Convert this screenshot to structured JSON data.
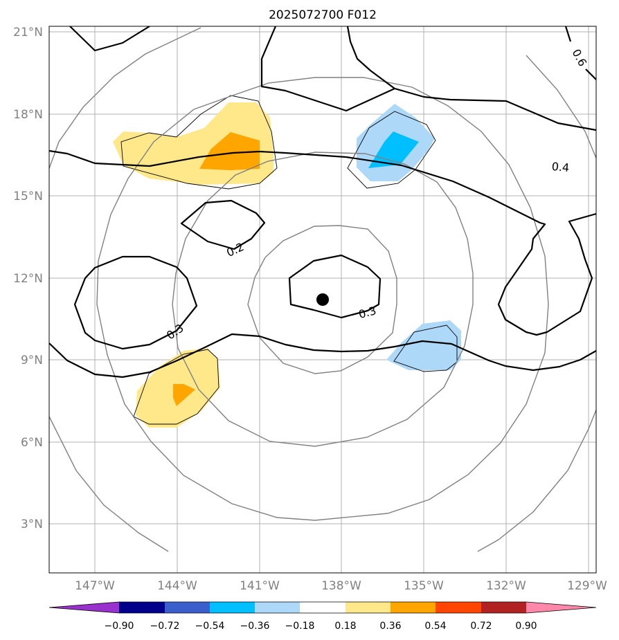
{
  "title": "2025072700 F012",
  "map": {
    "lon_labels": [
      "147°W",
      "144°W",
      "141°W",
      "138°W",
      "135°W",
      "132°W",
      "129°W"
    ],
    "lat_labels": [
      "21°N",
      "18°N",
      "15°N",
      "12°N",
      "9°N",
      "6°N",
      "3°N"
    ],
    "lon_ticks": [
      -147,
      -144,
      -141,
      -138,
      -135,
      -132,
      -129
    ],
    "lat_ticks": [
      21,
      18,
      15,
      12,
      9,
      6,
      3
    ],
    "extent": {
      "lon_min": -148.65,
      "lon_max": -128.7,
      "lat_min": 1.2,
      "lat_max": 21.15
    },
    "center_marker": {
      "lon": -138.7,
      "lat": 11.2
    },
    "contour_labels": [
      "0.6",
      "0.4",
      "0.2",
      "0.3",
      "0.3"
    ],
    "colors": {
      "contour": "#000000",
      "range_rings": "#808080",
      "grid": "#b0b0b0"
    }
  },
  "colorbar": {
    "tick_labels": [
      "−0.90",
      "−0.72",
      "−0.54",
      "−0.36",
      "−0.18",
      "0.18",
      "0.36",
      "0.54",
      "0.72",
      "0.90"
    ],
    "bins": [
      {
        "color": "#9932cc"
      },
      {
        "color": "#00008b"
      },
      {
        "color": "#3a5fcd"
      },
      {
        "color": "#00bfff"
      },
      {
        "color": "#add8f7"
      },
      {
        "color": "#ffffff"
      },
      {
        "color": "#ffe88a"
      },
      {
        "color": "#ffa500"
      },
      {
        "color": "#ff4500"
      },
      {
        "color": "#b22222"
      },
      {
        "color": "#ff88aa"
      }
    ]
  }
}
